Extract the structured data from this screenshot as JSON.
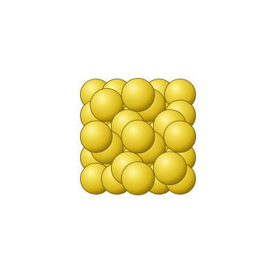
{
  "scene": {
    "subject": "atom-cluster",
    "colors": {
      "background": "#ffffff",
      "highlight": "#fff6a8",
      "light": "#f2dd50",
      "mid": "#d8b516",
      "dark": "#8a6c00",
      "edge": "#5e4a00"
    },
    "back_layer": {
      "rows": 5,
      "cols": 5
    },
    "front_layer": {
      "rows": 4,
      "cols": 4,
      "pattern": "checkerboard-even"
    }
  }
}
